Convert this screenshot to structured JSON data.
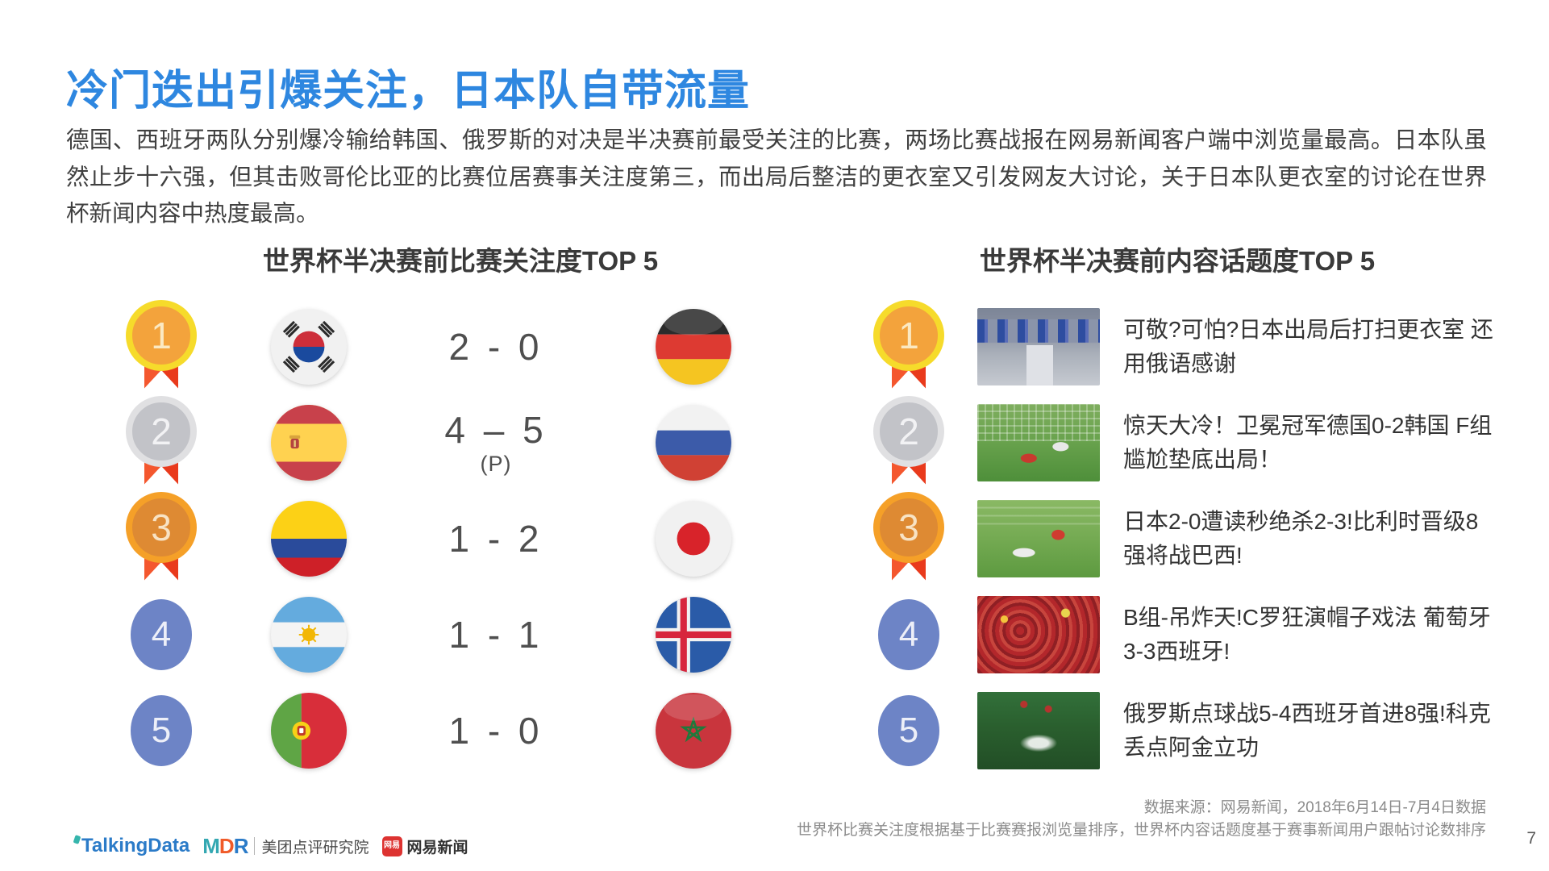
{
  "slide": {
    "title": "冷门迭出引爆关注，日本队自带流量",
    "paragraph": "德国、西班牙两队分别爆冷输给韩国、俄罗斯的对决是半决赛前最受关注的比赛，两场比赛战报在网易新闻客户端中浏览量最高。日本队虽然止步十六强，但其击败哥伦比亚的比赛位居赛事关注度第三，而出局后整洁的更衣室又引发网友大讨论，关于日本队更衣室的讨论在世界杯新闻内容中热度最高。",
    "page_number": "7"
  },
  "left_section": {
    "title": "世界杯半决赛前比赛关注度TOP 5",
    "matches": [
      {
        "rank": "1",
        "home": "韩国",
        "home_key": "kr",
        "score": "2 - 0",
        "away": "德国",
        "away_key": "de"
      },
      {
        "rank": "2",
        "home": "西班牙",
        "home_key": "es",
        "score": "4 – 5",
        "note": "(P)",
        "away": "俄罗斯",
        "away_key": "ru"
      },
      {
        "rank": "3",
        "home": "哥伦比亚",
        "home_key": "co",
        "score": "1 - 2",
        "away": "日本",
        "away_key": "jp"
      },
      {
        "rank": "4",
        "home": "阿根廷",
        "home_key": "ar",
        "score": "1 - 1",
        "away": "冰岛",
        "away_key": "is"
      },
      {
        "rank": "5",
        "home": "葡萄牙",
        "home_key": "pt",
        "score": "1 - 0",
        "away": "摩洛哥",
        "away_key": "ma"
      }
    ]
  },
  "right_section": {
    "title": "世界杯半决赛前内容话题度TOP 5",
    "items": [
      {
        "rank": "1",
        "headline": "可敬?可怕?日本出局后打扫更衣室 还用俄语感谢",
        "thumbnail": "japan-locker-room-photo"
      },
      {
        "rank": "2",
        "headline": "惊天大冷！卫冕冠军德国0-2韩国 F组尴尬垫底出局！",
        "thumbnail": "germany-korea-goal-photo"
      },
      {
        "rank": "3",
        "headline": "日本2-0遭读秒绝杀2-3!比利时晋级8强将战巴西!",
        "thumbnail": "japan-belgium-pitch-photo"
      },
      {
        "rank": "4",
        "headline": "B组-吊炸天!C罗狂演帽子戏法 葡萄牙3-3西班牙!",
        "thumbnail": "portugal-spain-fans-photo"
      },
      {
        "rank": "5",
        "headline": "俄罗斯点球战5-4西班牙首进8强!科克丢点阿金立功",
        "thumbnail": "russia-spain-penalty-photo"
      }
    ]
  },
  "footer": {
    "source_line1": "数据来源：网易新闻，2018年6月14日-7月4日数据",
    "source_line2": "世界杯比赛关注度根据基于比赛赛报浏览量排序，世界杯内容话题度基于赛事新闻用户跟帖讨论数排序",
    "logos": {
      "talkingdata": "TalkingData",
      "mdr_m": "M",
      "mdr_d": "D",
      "mdr_r": "R",
      "meituan_institute": "美团点评研究院",
      "netease_badge": "网易",
      "netease_news": "网易新闻"
    }
  },
  "colors": {
    "title_blue": "#2E87E0",
    "medal_gold": "#F6DB2B",
    "medal_silver": "#E0E0E2",
    "medal_bronze": "#F5A028",
    "ribbon_red": "#F0502A",
    "rank_blue": "#6D84C6"
  }
}
